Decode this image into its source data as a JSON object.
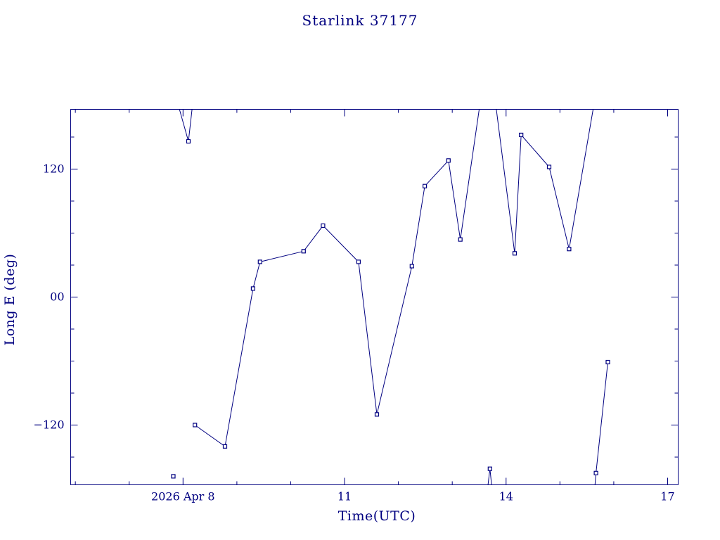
{
  "title": "Starlink 37177",
  "colors": {
    "accent": "#000080",
    "background": "#ffffff"
  },
  "chart_data": {
    "type": "line",
    "title": "Starlink 37177",
    "xlabel": "Time(UTC)",
    "ylabel": "Long E (deg)",
    "x_unit": "day of April 2026 (UTC)",
    "y_unit": "degrees East longitude",
    "xlim": [
      5.913,
      17.196
    ],
    "ylim": [
      -176,
      176
    ],
    "grid": false,
    "legend": "none",
    "marker": "open-square",
    "x_major_ticks": [
      {
        "value": 8,
        "label": "2026 Apr 8"
      },
      {
        "value": 11,
        "label": "11"
      },
      {
        "value": 14,
        "label": "14"
      },
      {
        "value": 17,
        "label": "17"
      }
    ],
    "x_minor_ticks": [
      6,
      7,
      9,
      10,
      12,
      13,
      15,
      16
    ],
    "y_major_ticks": [
      {
        "value": 120,
        "label": "120"
      },
      {
        "value": 0,
        "label": "00"
      },
      {
        "value": -120,
        "label": "−120"
      }
    ],
    "y_minor_ticks": [
      -150,
      -90,
      -60,
      -30,
      30,
      60,
      90,
      150
    ],
    "points": [
      [
        7.82,
        -168
      ],
      [
        8.1,
        146
      ],
      [
        8.22,
        -120
      ],
      [
        8.78,
        -140
      ],
      [
        9.3,
        8
      ],
      [
        9.43,
        33
      ],
      [
        10.24,
        43
      ],
      [
        10.6,
        67
      ],
      [
        11.26,
        33
      ],
      [
        11.6,
        -110
      ],
      [
        12.25,
        29
      ],
      [
        12.49,
        104
      ],
      [
        12.93,
        128
      ],
      [
        13.15,
        54
      ],
      [
        13.7,
        -161
      ],
      [
        14.16,
        41
      ],
      [
        14.28,
        152
      ],
      [
        14.8,
        122
      ],
      [
        15.17,
        45
      ],
      [
        15.67,
        -165
      ],
      [
        15.89,
        -61
      ]
    ],
    "segments": [
      [
        [
          7.8,
          200
        ],
        [
          8.1,
          146
        ],
        [
          8.22,
          200
        ]
      ],
      [
        [
          8.22,
          -120
        ],
        [
          8.78,
          -140
        ],
        [
          9.3,
          8
        ],
        [
          9.43,
          33
        ],
        [
          10.24,
          43
        ],
        [
          10.6,
          67
        ],
        [
          11.26,
          33
        ],
        [
          11.6,
          -110
        ],
        [
          12.25,
          29
        ],
        [
          12.49,
          104
        ],
        [
          12.93,
          128
        ],
        [
          13.15,
          54
        ],
        [
          13.67,
          235
        ],
        [
          14.16,
          41
        ],
        [
          14.28,
          152
        ],
        [
          14.8,
          122
        ],
        [
          15.17,
          45
        ],
        [
          15.8,
          230
        ]
      ],
      [
        [
          13.56,
          -220
        ],
        [
          13.7,
          -161
        ],
        [
          13.82,
          -220
        ]
      ],
      [
        [
          15.58,
          -220
        ],
        [
          15.67,
          -165
        ],
        [
          15.89,
          -61
        ]
      ]
    ]
  }
}
